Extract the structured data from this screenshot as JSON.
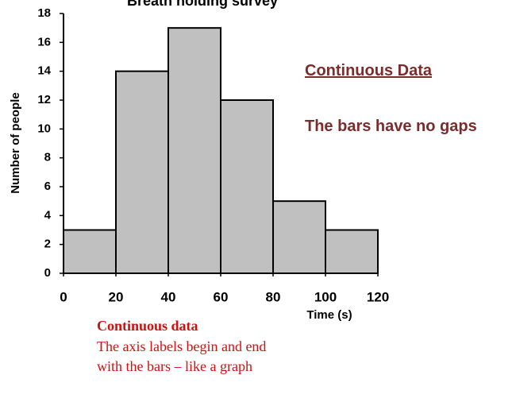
{
  "chart_data": {
    "type": "histogram",
    "title": "Breath holding survey",
    "x_label": "Time (s)",
    "y_label": "Number of people",
    "bins": [
      0,
      20,
      40,
      60,
      80,
      100,
      120
    ],
    "values": [
      3,
      14,
      17,
      12,
      5,
      3
    ],
    "color": "#c0c0c0",
    "xlim": [
      0,
      120
    ],
    "xticks": [
      0,
      20,
      40,
      60,
      80,
      100,
      120
    ],
    "ylim": [
      0,
      18
    ],
    "yticks": [
      0,
      2,
      4,
      6,
      8,
      10,
      12,
      14,
      16,
      18
    ],
    "annotations": [
      "Continuous Data",
      "The bars have no gaps",
      "Continuous data",
      "The axis labels begin and end with the bars – like a graph"
    ]
  }
}
